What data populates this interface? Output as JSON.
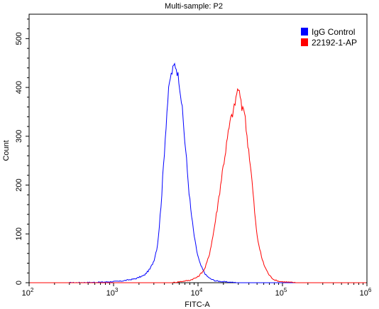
{
  "chart_data": {
    "type": "line",
    "title": "Multi-sample: P2",
    "xlabel": "FITC-A",
    "ylabel": "Count",
    "x_scale": "log",
    "xlim": [
      100,
      1000000
    ],
    "ylim": [
      0,
      550
    ],
    "x_ticks": [
      {
        "value": 100,
        "base": "10",
        "exp": "2"
      },
      {
        "value": 1000,
        "base": "10",
        "exp": "3"
      },
      {
        "value": 10000,
        "base": "10",
        "exp": "4"
      },
      {
        "value": 100000,
        "base": "10",
        "exp": "5"
      },
      {
        "value": 1000000,
        "base": "10",
        "exp": "6"
      }
    ],
    "y_ticks": [
      0,
      100,
      200,
      300,
      400,
      500
    ],
    "grid": false,
    "legend": {
      "position": "top-right",
      "entries": [
        {
          "label": "IgG Control",
          "color": "#0000ff"
        },
        {
          "label": "22192-1-AP",
          "color": "#ff0000"
        }
      ]
    },
    "series": [
      {
        "name": "IgG Control",
        "color": "#0000ff",
        "x": [
          300,
          700,
          1200,
          1800,
          2300,
          2700,
          3000,
          3300,
          3500,
          3700,
          3900,
          4100,
          4300,
          4500,
          4700,
          4900,
          5100,
          5300,
          5500,
          5700,
          5900,
          6100,
          6300,
          6500,
          6700,
          6900,
          7200,
          7500,
          7800,
          8200,
          8700,
          9200,
          9800,
          10500,
          11500,
          12500,
          14000,
          16000,
          20000,
          30000
        ],
        "y": [
          0,
          1,
          3,
          8,
          15,
          28,
          45,
          75,
          120,
          175,
          240,
          300,
          355,
          395,
          420,
          430,
          440,
          448,
          442,
          430,
          420,
          400,
          380,
          355,
          330,
          300,
          265,
          225,
          190,
          150,
          115,
          85,
          60,
          40,
          25,
          15,
          8,
          4,
          2,
          0
        ]
      },
      {
        "name": "22192-1-AP",
        "color": "#ff0000",
        "x": [
          5000,
          8000,
          10000,
          12000,
          13500,
          15000,
          16500,
          18000,
          19500,
          21000,
          22500,
          24000,
          25500,
          27000,
          28500,
          30000,
          31500,
          33000,
          34500,
          36000,
          38000,
          40000,
          42000,
          44000,
          46000,
          48000,
          50000,
          53000,
          56000,
          60000,
          65000,
          70000,
          75000,
          80000,
          90000,
          100000,
          120000,
          150000
        ],
        "y": [
          0,
          5,
          12,
          28,
          55,
          95,
          140,
          185,
          230,
          265,
          300,
          330,
          345,
          360,
          385,
          400,
          380,
          355,
          365,
          340,
          300,
          270,
          235,
          200,
          160,
          125,
          95,
          75,
          55,
          38,
          25,
          15,
          10,
          6,
          3,
          2,
          1,
          0
        ]
      }
    ]
  }
}
